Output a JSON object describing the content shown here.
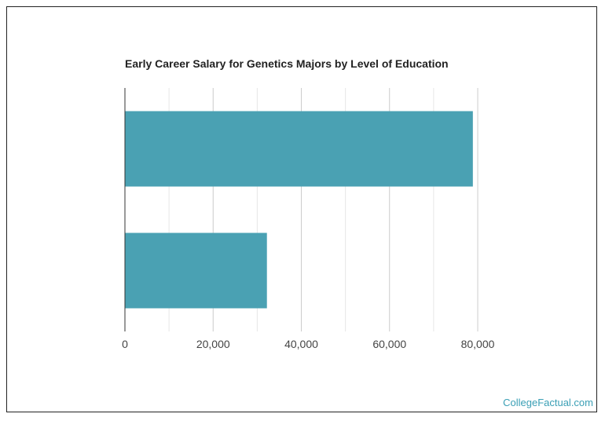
{
  "chart_data": {
    "type": "bar",
    "orientation": "horizontal",
    "title": "Early Career Salary for Genetics Majors by Level of Education",
    "categories": [
      "",
      ""
    ],
    "values": [
      78900,
      32200
    ],
    "xlim": [
      0,
      80000
    ],
    "ticks": [
      0,
      20000,
      40000,
      60000,
      80000
    ],
    "tick_labels": [
      "0",
      "20,000",
      "40,000",
      "60,000",
      "80,000"
    ],
    "bar_color": "#4aa1b3",
    "grid": true,
    "legend": "none"
  },
  "footer": {
    "brand": "CollegeFactual.com",
    "brand_color": "#3a9fb5"
  }
}
